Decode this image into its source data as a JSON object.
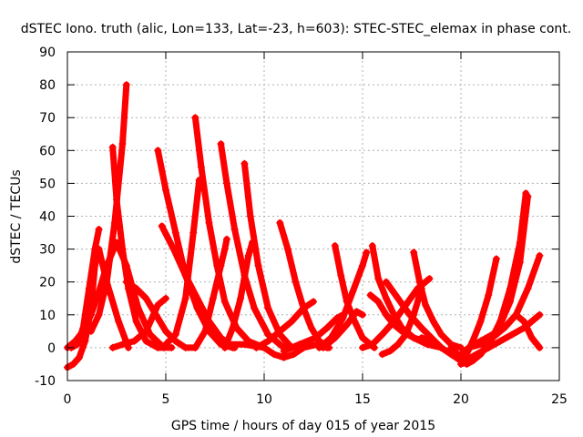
{
  "chart_data": {
    "type": "line",
    "title": "dSTEC Iono. truth (alic, Lon=133, Lat=-23, h=603): STEC-STEC_elemax in phase cont.",
    "xlabel": "GPS time / hours of day 015 of year 2015",
    "ylabel": "dSTEC  / TECUs",
    "xlim": [
      0,
      25
    ],
    "ylim": [
      -10,
      90
    ],
    "xticks": [
      0,
      5,
      10,
      15,
      20,
      25
    ],
    "yticks": [
      -10,
      0,
      10,
      20,
      30,
      40,
      50,
      60,
      70,
      80,
      90
    ],
    "grid": true,
    "legend": "none",
    "line_color": "#ff0000",
    "series": [
      {
        "x": [
          0.0,
          0.3,
          0.6,
          0.9,
          1.2,
          1.4,
          1.6,
          2.0,
          2.6,
          3.1
        ],
        "y": [
          -6,
          -5,
          -3,
          2,
          12,
          25,
          30,
          20,
          8,
          0
        ]
      },
      {
        "x": [
          0.0,
          0.4,
          0.8,
          1.2,
          1.6,
          2.0,
          2.5,
          3.0,
          3.6,
          4.2,
          4.9
        ],
        "y": [
          0,
          2,
          5,
          10,
          17,
          25,
          32,
          25,
          12,
          4,
          0
        ]
      },
      {
        "x": [
          0.2,
          0.5,
          0.8,
          1.1,
          1.4,
          1.6
        ],
        "y": [
          0,
          1,
          6,
          18,
          30,
          36
        ]
      },
      {
        "x": [
          1.2,
          1.6,
          2.0,
          2.4,
          2.8,
          3.0
        ],
        "y": [
          5,
          10,
          20,
          38,
          62,
          80
        ]
      },
      {
        "x": [
          2.3,
          2.5,
          2.8,
          3.1,
          3.5,
          4.0,
          4.6,
          5.3
        ],
        "y": [
          61,
          45,
          30,
          18,
          8,
          2,
          0,
          0
        ]
      },
      {
        "x": [
          2.3,
          2.8,
          3.4,
          4.0,
          4.6,
          5.0
        ],
        "y": [
          0,
          1,
          2,
          5,
          13,
          15
        ]
      },
      {
        "x": [
          3.0,
          3.5,
          4.0,
          4.5,
          5.0,
          5.5,
          6.0,
          6.5
        ],
        "y": [
          20,
          18,
          15,
          10,
          5,
          2,
          0,
          0
        ]
      },
      {
        "x": [
          4.6,
          5.0,
          5.5,
          6.0,
          6.6,
          7.2,
          7.8,
          8.4
        ],
        "y": [
          60,
          48,
          35,
          22,
          12,
          5,
          1,
          0
        ]
      },
      {
        "x": [
          4.8,
          5.4,
          6.0,
          6.6,
          7.2,
          7.8,
          8.5
        ],
        "y": [
          37,
          30,
          22,
          15,
          8,
          3,
          0
        ]
      },
      {
        "x": [
          5.0,
          5.5,
          6.0,
          6.4,
          6.7
        ],
        "y": [
          1,
          4,
          15,
          35,
          51
        ]
      },
      {
        "x": [
          6.5,
          6.8,
          7.2,
          7.6,
          8.0,
          8.6,
          9.2,
          10.0
        ],
        "y": [
          70,
          55,
          38,
          25,
          14,
          6,
          2,
          0
        ]
      },
      {
        "x": [
          6.5,
          7.0,
          7.4,
          7.8,
          8.0,
          8.1
        ],
        "y": [
          0,
          5,
          15,
          25,
          30,
          33
        ]
      },
      {
        "x": [
          7.8,
          8.1,
          8.5,
          9.0,
          9.5,
          10.2,
          11.0
        ],
        "y": [
          62,
          50,
          36,
          22,
          12,
          4,
          0
        ]
      },
      {
        "x": [
          8.0,
          8.4,
          8.8,
          9.2,
          9.4
        ],
        "y": [
          0,
          6,
          15,
          28,
          32
        ]
      },
      {
        "x": [
          9.0,
          9.3,
          9.7,
          10.2,
          10.8,
          11.4
        ],
        "y": [
          56,
          40,
          25,
          12,
          4,
          0
        ]
      },
      {
        "x": [
          10.8,
          11.2,
          11.6,
          12.0,
          12.4,
          12.8,
          13.3
        ],
        "y": [
          38,
          30,
          20,
          12,
          6,
          2,
          0
        ]
      },
      {
        "x": [
          9.6,
          10.2,
          10.8,
          11.4,
          12.0,
          12.5
        ],
        "y": [
          0,
          2,
          5,
          8,
          12,
          14
        ]
      },
      {
        "x": [
          8.0,
          9.0,
          10.0,
          10.5,
          11.0,
          11.5,
          12.0,
          12.7,
          13.2
        ],
        "y": [
          1,
          1,
          0,
          -2,
          -3,
          -2,
          0,
          1,
          0
        ]
      },
      {
        "x": [
          11.0,
          11.8,
          12.6,
          13.2,
          13.7,
          14.0
        ],
        "y": [
          -1,
          1,
          3,
          6,
          9,
          10
        ]
      },
      {
        "x": [
          13.6,
          13.9,
          14.2,
          14.6,
          15.0,
          15.6
        ],
        "y": [
          31,
          22,
          14,
          8,
          3,
          0
        ]
      },
      {
        "x": [
          12.8,
          13.4,
          14.0,
          14.5,
          15.0,
          15.2
        ],
        "y": [
          0,
          3,
          9,
          17,
          25,
          29
        ]
      },
      {
        "x": [
          13.0,
          13.6,
          14.2,
          14.7,
          15.0
        ],
        "y": [
          0,
          3,
          7,
          11,
          10
        ]
      },
      {
        "x": [
          15.5,
          15.8,
          16.2,
          16.6,
          17.0,
          17.6,
          18.3,
          19.0
        ],
        "y": [
          31,
          21,
          15,
          10,
          6,
          3,
          1,
          0
        ]
      },
      {
        "x": [
          15.4,
          15.8,
          16.2,
          16.6,
          17.0,
          17.6,
          18.2,
          19.0
        ],
        "y": [
          16,
          14,
          10,
          7,
          5,
          3,
          2,
          0
        ]
      },
      {
        "x": [
          16.0,
          16.4,
          16.8,
          17.2,
          17.6,
          18.0
        ],
        "y": [
          -2,
          -1,
          1,
          4,
          10,
          18
        ]
      },
      {
        "x": [
          16.2,
          16.8,
          17.4,
          18.0,
          18.5,
          19.0
        ],
        "y": [
          20,
          15,
          10,
          6,
          3,
          0
        ]
      },
      {
        "x": [
          17.6,
          17.9,
          18.2,
          18.6,
          19.0,
          19.5,
          20.0
        ],
        "y": [
          29,
          20,
          13,
          8,
          4,
          1,
          0
        ]
      },
      {
        "x": [
          15.0,
          15.5,
          16.0,
          16.6,
          17.2,
          17.8,
          18.4
        ],
        "y": [
          0,
          1,
          4,
          8,
          13,
          18,
          21
        ]
      },
      {
        "x": [
          18.0,
          18.5,
          19.0,
          19.5,
          20.0,
          20.3,
          20.6,
          21.0
        ],
        "y": [
          3,
          2,
          0,
          -2,
          -4,
          -5,
          -4,
          -2
        ]
      },
      {
        "x": [
          19.5,
          20.0,
          20.5,
          21.0,
          21.5,
          22.0,
          22.5,
          23.0,
          23.3
        ],
        "y": [
          0,
          -3,
          -4,
          -2,
          2,
          8,
          18,
          32,
          47
        ]
      },
      {
        "x": [
          20.0,
          20.5,
          21.0,
          21.5,
          22.0,
          22.5,
          23.0,
          23.4
        ],
        "y": [
          -5,
          -4,
          -2,
          2,
          7,
          14,
          26,
          46
        ]
      },
      {
        "x": [
          20.2,
          20.6,
          21.0,
          21.4,
          21.8
        ],
        "y": [
          -3,
          2,
          8,
          16,
          27
        ]
      },
      {
        "x": [
          19.8,
          20.4,
          21.0,
          21.6,
          22.2,
          22.8,
          23.4,
          24.0
        ],
        "y": [
          -3,
          0,
          2,
          4,
          6,
          10,
          18,
          28
        ]
      },
      {
        "x": [
          20.2,
          20.8,
          21.4,
          22.0,
          22.6,
          23.2,
          23.6,
          24.0
        ],
        "y": [
          -4,
          -2,
          0,
          2,
          4,
          6,
          8,
          10
        ]
      },
      {
        "x": [
          20.4,
          21.0,
          21.6,
          22.2,
          22.8,
          23.2,
          23.6,
          24.0
        ],
        "y": [
          0,
          1,
          3,
          6,
          10,
          8,
          3,
          0
        ]
      }
    ]
  }
}
